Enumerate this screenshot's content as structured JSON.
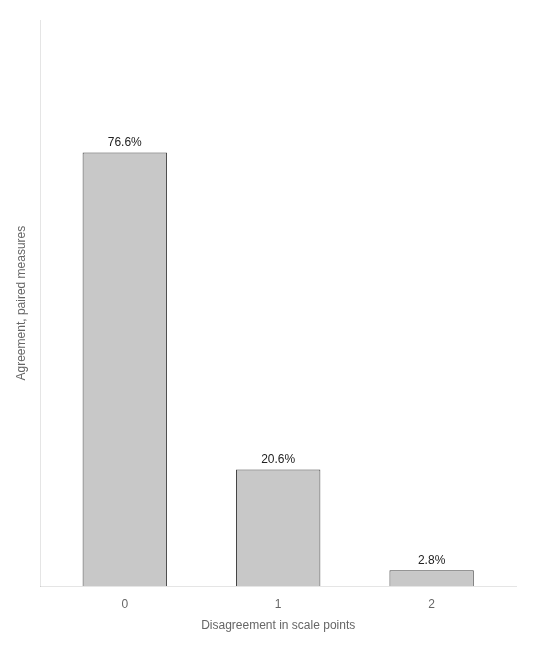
{
  "chart_data": {
    "type": "bar",
    "xlabel": "Disagreement in scale points",
    "ylabel": "Agreement, paired measures",
    "categories": [
      0,
      1,
      2
    ],
    "values": [
      76.6,
      20.6,
      2.8
    ],
    "value_labels": [
      "76.6%",
      "20.6%",
      "2.8%"
    ],
    "data_labels": true,
    "color": "#c8c8c8",
    "xlim": [
      -0.55,
      2.55
    ],
    "xticks": [
      0,
      1,
      2
    ],
    "ylim": [
      0,
      100
    ],
    "tick_labels": "x",
    "grid": false
  }
}
